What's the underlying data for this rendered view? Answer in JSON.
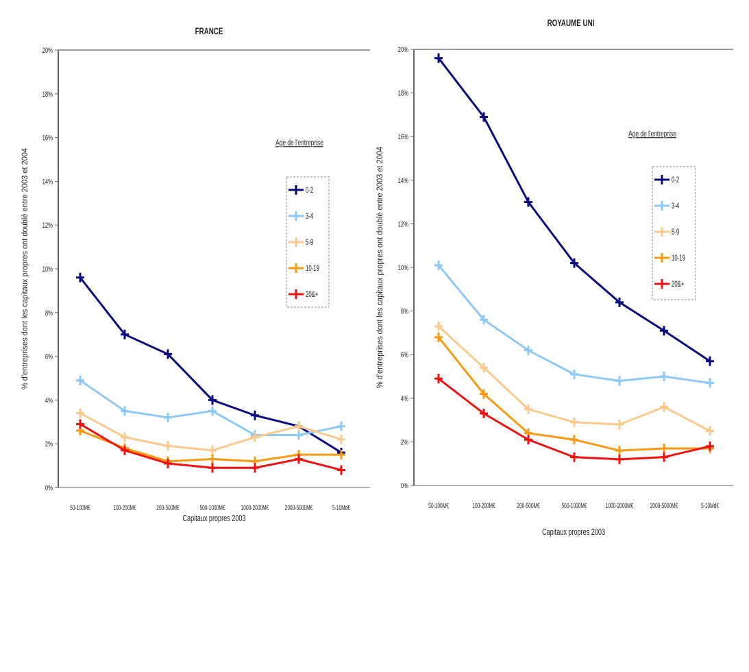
{
  "chart_data": [
    {
      "type": "line",
      "title": "FRANCE",
      "xlabel": "Capitaux propres 2003",
      "ylabel": "% d'entreprises dont les capitaux propres ont doublé entre 2003 et 2004",
      "categories": [
        "50-100M€",
        "100-200M€",
        "200-500M€",
        "500-1000M€",
        "1000-2000M€",
        "2000-5000M€",
        "5-10Md€"
      ],
      "ylim": [
        0,
        20
      ],
      "yticks": [
        "0%",
        "2%",
        "4%",
        "6%",
        "8%",
        "10%",
        "12%",
        "14%",
        "16%",
        "18%",
        "20%"
      ],
      "grid": false,
      "legend_title": "Age de l'entreprise",
      "legend_position": "right",
      "series": [
        {
          "name": "0-2",
          "color": "#0a0a80",
          "values": [
            9.6,
            7.0,
            6.1,
            4.0,
            3.3,
            2.8,
            1.6
          ]
        },
        {
          "name": "3-4",
          "color": "#8ec8f5",
          "values": [
            4.9,
            3.5,
            3.2,
            3.5,
            2.4,
            2.4,
            2.8
          ]
        },
        {
          "name": "5-9",
          "color": "#fbc98c",
          "values": [
            3.4,
            2.3,
            1.9,
            1.7,
            2.3,
            2.8,
            2.2
          ]
        },
        {
          "name": "10-19",
          "color": "#f79a10",
          "values": [
            2.6,
            1.8,
            1.2,
            1.3,
            1.2,
            1.5,
            1.5
          ]
        },
        {
          "name": "20&+",
          "color": "#f01010",
          "values": [
            2.9,
            1.7,
            1.1,
            0.9,
            0.9,
            1.3,
            0.8
          ]
        }
      ]
    },
    {
      "type": "line",
      "title": "ROYAUME UNI",
      "xlabel": "Capitaux propres 2003",
      "ylabel": "% d'entreprises dont les capitaux propres ont doublé entre 2003 et 2004",
      "categories": [
        "50-100M€",
        "100-200M€",
        "200-500M€",
        "500-1000M€",
        "1000-2000M€",
        "2000-5000M€",
        "5-10Md€"
      ],
      "ylim": [
        0,
        20
      ],
      "yticks": [
        "0%",
        "2%",
        "4%",
        "6%",
        "8%",
        "10%",
        "12%",
        "14%",
        "16%",
        "18%",
        "20%"
      ],
      "grid": false,
      "legend_title": "Age de l'entreprise",
      "legend_position": "right",
      "series": [
        {
          "name": "0-2",
          "color": "#0a0a80",
          "values": [
            19.6,
            16.9,
            13.0,
            10.2,
            8.4,
            7.1,
            5.7
          ]
        },
        {
          "name": "3-4",
          "color": "#8ec8f5",
          "values": [
            10.1,
            7.6,
            6.2,
            5.1,
            4.8,
            5.0,
            4.7
          ]
        },
        {
          "name": "5-9",
          "color": "#fbc98c",
          "values": [
            7.3,
            5.4,
            3.5,
            2.9,
            2.8,
            3.6,
            2.5
          ]
        },
        {
          "name": "10-19",
          "color": "#f79a10",
          "values": [
            6.8,
            4.2,
            2.4,
            2.1,
            1.6,
            1.7,
            1.7
          ]
        },
        {
          "name": "20&+",
          "color": "#f01010",
          "values": [
            4.9,
            3.3,
            2.1,
            1.3,
            1.2,
            1.3,
            1.8
          ]
        }
      ]
    }
  ]
}
